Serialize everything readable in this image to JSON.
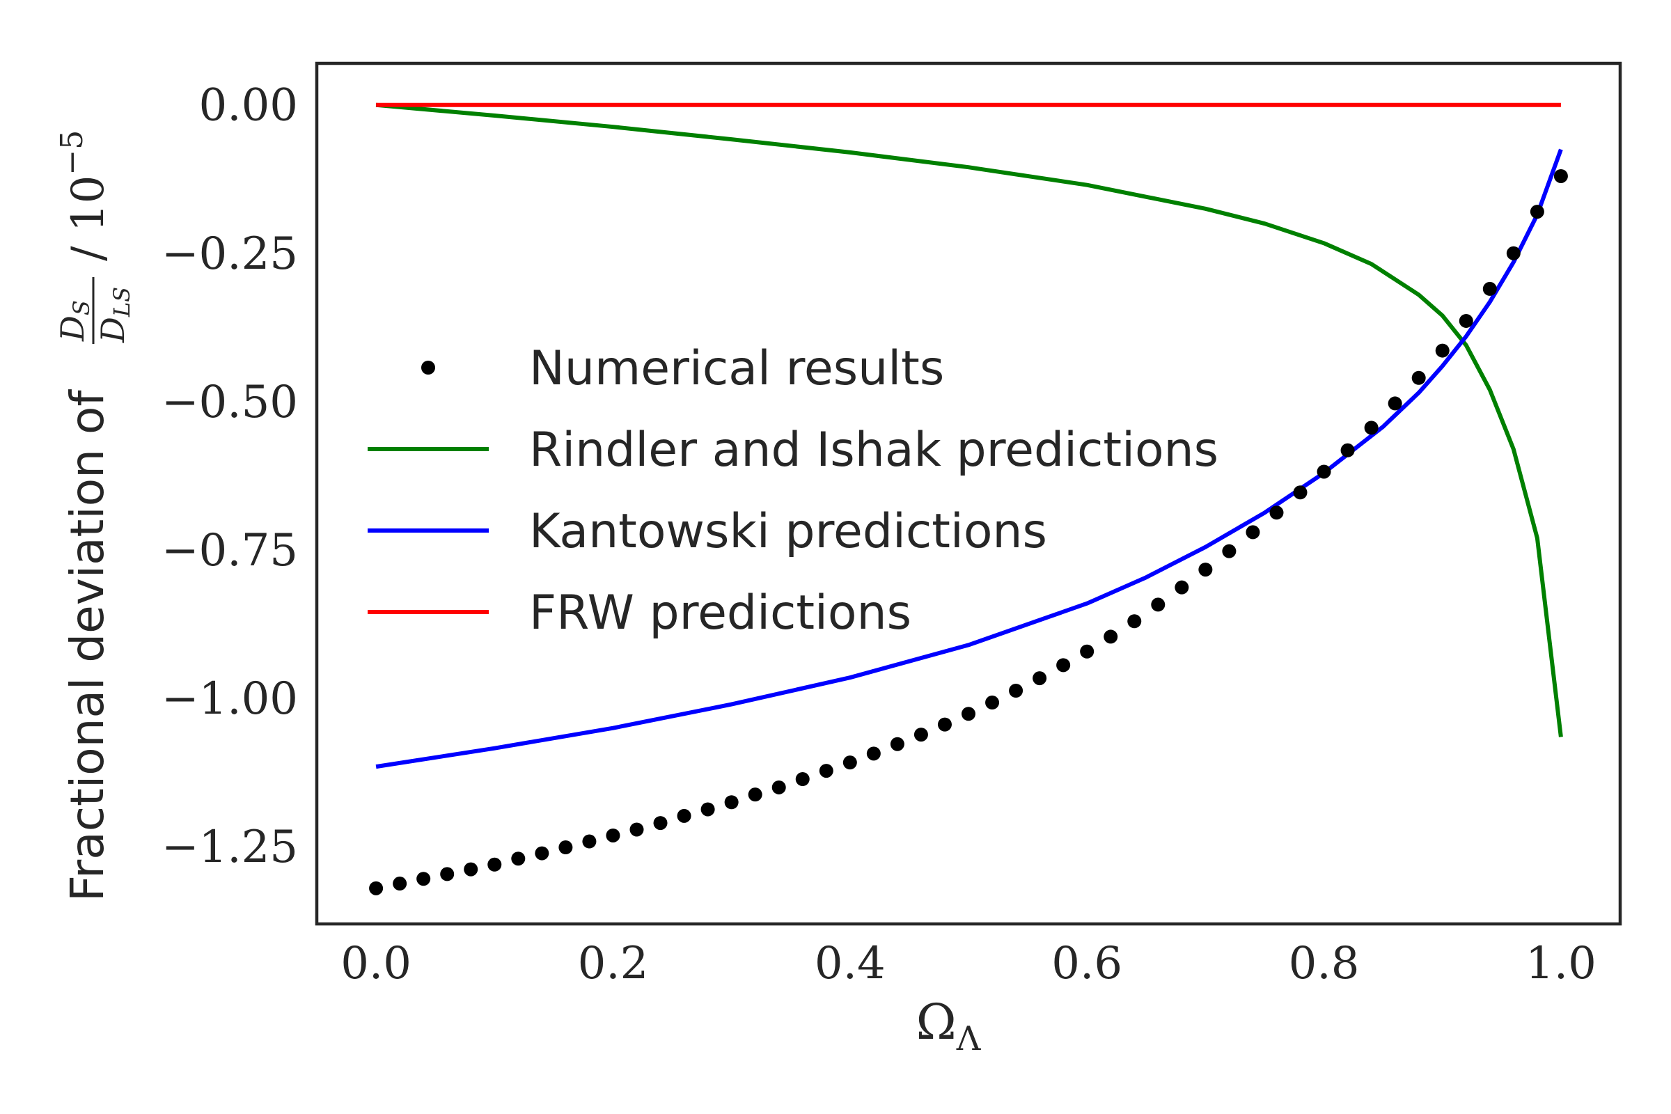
{
  "chart_data": {
    "type": "line",
    "xlabel": {
      "base": "Ω",
      "sub": "Λ"
    },
    "ylabel": {
      "prefix": "Fractional deviation of",
      "numerator": "D",
      "numerator_sub": "S",
      "denominator": "D",
      "denominator_sub": "LS",
      "scale_text": "/ 10",
      "scale_exp": "−5"
    },
    "xlim": [
      -0.05,
      1.05
    ],
    "ylim": [
      -1.38,
      0.07
    ],
    "xticks": [
      0.0,
      0.2,
      0.4,
      0.6,
      0.8,
      1.0
    ],
    "xtick_labels": [
      "0.0",
      "0.2",
      "0.4",
      "0.6",
      "0.8",
      "1.0"
    ],
    "yticks": [
      0.0,
      -0.25,
      -0.5,
      -0.75,
      -1.0,
      -1.25
    ],
    "ytick_labels": [
      "0.00",
      "−0.25",
      "−0.50",
      "−0.75",
      "−1.00",
      "−1.25"
    ],
    "grid": false,
    "legend_position": "center-left",
    "series": [
      {
        "name": "Numerical results",
        "style": "dots",
        "color": "#000000",
        "x": [
          0.0,
          0.02,
          0.04,
          0.06,
          0.08,
          0.1,
          0.12,
          0.14,
          0.16,
          0.18,
          0.2,
          0.22,
          0.24,
          0.26,
          0.28,
          0.3,
          0.32,
          0.34,
          0.36,
          0.38,
          0.4,
          0.42,
          0.44,
          0.46,
          0.48,
          0.5,
          0.52,
          0.54,
          0.56,
          0.58,
          0.6,
          0.62,
          0.64,
          0.66,
          0.68,
          0.7,
          0.72,
          0.74,
          0.76,
          0.78,
          0.8,
          0.82,
          0.84,
          0.86,
          0.88,
          0.9,
          0.92,
          0.94,
          0.96,
          0.98,
          1.0
        ],
        "y": [
          -1.32,
          -1.312,
          -1.304,
          -1.296,
          -1.288,
          -1.28,
          -1.27,
          -1.261,
          -1.251,
          -1.241,
          -1.231,
          -1.221,
          -1.21,
          -1.198,
          -1.187,
          -1.175,
          -1.162,
          -1.15,
          -1.136,
          -1.122,
          -1.108,
          -1.093,
          -1.077,
          -1.061,
          -1.044,
          -1.026,
          -1.007,
          -0.987,
          -0.966,
          -0.944,
          -0.921,
          -0.896,
          -0.87,
          -0.842,
          -0.813,
          -0.783,
          -0.752,
          -0.72,
          -0.687,
          -0.653,
          -0.618,
          -0.582,
          -0.544,
          -0.503,
          -0.46,
          -0.414,
          -0.364,
          -0.31,
          -0.25,
          -0.18,
          -0.12
        ]
      },
      {
        "name": "Rindler and Ishak predictions",
        "style": "line",
        "color": "#008000",
        "x": [
          0.0,
          0.1,
          0.2,
          0.3,
          0.4,
          0.5,
          0.6,
          0.7,
          0.75,
          0.8,
          0.84,
          0.88,
          0.9,
          0.92,
          0.94,
          0.96,
          0.98,
          1.0
        ],
        "y": [
          0.0,
          -0.018,
          -0.037,
          -0.058,
          -0.08,
          -0.105,
          -0.135,
          -0.175,
          -0.2,
          -0.233,
          -0.268,
          -0.32,
          -0.355,
          -0.405,
          -0.48,
          -0.58,
          -0.73,
          -1.065
        ]
      },
      {
        "name": "Kantowski predictions",
        "style": "line",
        "color": "#0000ff",
        "x": [
          0.0,
          0.1,
          0.2,
          0.3,
          0.4,
          0.5,
          0.6,
          0.65,
          0.7,
          0.75,
          0.8,
          0.85,
          0.88,
          0.9,
          0.92,
          0.94,
          0.96,
          0.98,
          1.0
        ],
        "y": [
          -1.115,
          -1.084,
          -1.05,
          -1.01,
          -0.965,
          -0.91,
          -0.84,
          -0.796,
          -0.745,
          -0.687,
          -0.62,
          -0.542,
          -0.485,
          -0.44,
          -0.39,
          -0.332,
          -0.265,
          -0.185,
          -0.075
        ]
      },
      {
        "name": "FRW predictions",
        "style": "line",
        "color": "#ff0000",
        "x": [
          0.0,
          1.0
        ],
        "y": [
          0.0,
          0.0
        ]
      }
    ]
  }
}
